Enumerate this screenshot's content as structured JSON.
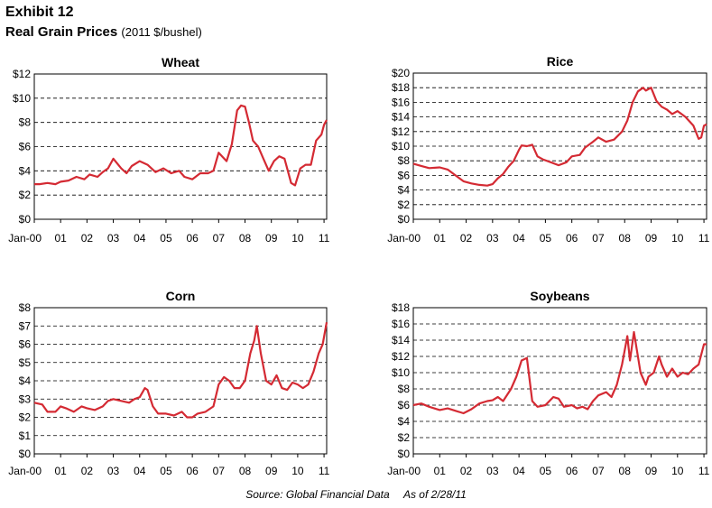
{
  "header": {
    "exhibit": "Exhibit 12",
    "title": "Real Grain Prices",
    "units": "(2011 $/bushel)"
  },
  "footer": {
    "source": "Source:  Global Financial Data",
    "asof": "As of 2/28/11"
  },
  "colors": {
    "line": "#d42a33",
    "grid": "#000000",
    "axis": "#000000"
  },
  "chart_data": [
    {
      "type": "line",
      "title": "Wheat",
      "first_category_label": "Jan-00",
      "categories": [
        "00",
        "01",
        "02",
        "03",
        "04",
        "05",
        "06",
        "07",
        "08",
        "09",
        "10",
        "11"
      ],
      "ylim": [
        0,
        12
      ],
      "yticks": [
        "$0",
        "$2",
        "$4",
        "$6",
        "$8",
        "$10",
        "$12"
      ],
      "grid": "horizontal dashed",
      "series": [
        {
          "x": [
            0,
            0.2,
            0.5,
            0.8,
            1.0,
            1.3,
            1.6,
            1.9,
            2.1,
            2.4,
            2.6,
            2.8,
            3.0,
            3.3,
            3.5,
            3.7,
            4.0,
            4.3,
            4.6,
            4.9,
            5.2,
            5.5,
            5.7,
            6.0,
            6.3,
            6.6,
            6.8,
            7.0,
            7.3,
            7.5,
            7.7,
            7.85,
            8.0,
            8.15,
            8.3,
            8.5,
            8.7,
            8.9,
            9.1,
            9.3,
            9.5,
            9.6,
            9.75,
            9.9,
            10.1,
            10.3,
            10.5,
            10.7,
            10.9,
            11.0,
            11.1
          ],
          "values": [
            2.9,
            2.9,
            3.0,
            2.9,
            3.1,
            3.2,
            3.5,
            3.3,
            3.7,
            3.5,
            3.9,
            4.2,
            5.0,
            4.2,
            3.8,
            4.4,
            4.8,
            4.5,
            3.9,
            4.2,
            3.8,
            4.0,
            3.5,
            3.3,
            3.8,
            3.8,
            4.0,
            5.5,
            4.8,
            6.2,
            9.0,
            9.4,
            9.3,
            8.0,
            6.5,
            6.0,
            5.0,
            4.0,
            4.8,
            5.2,
            5.0,
            4.2,
            3.0,
            2.8,
            4.2,
            4.5,
            4.5,
            6.5,
            7.0,
            7.8,
            8.2
          ]
        }
      ]
    },
    {
      "type": "line",
      "title": "Rice",
      "first_category_label": "Jan-00",
      "categories": [
        "00",
        "01",
        "02",
        "03",
        "04",
        "05",
        "06",
        "07",
        "08",
        "09",
        "10",
        "11"
      ],
      "ylim": [
        0,
        20
      ],
      "yticks": [
        "$0",
        "$2",
        "$4",
        "$6",
        "$8",
        "$10",
        "$12",
        "$14",
        "$16",
        "$18",
        "$20"
      ],
      "grid": "horizontal dashed",
      "series": [
        {
          "x": [
            0,
            0.3,
            0.6,
            1.0,
            1.3,
            1.6,
            1.9,
            2.2,
            2.5,
            2.8,
            3.0,
            3.2,
            3.4,
            3.6,
            3.8,
            4.0,
            4.1,
            4.3,
            4.5,
            4.7,
            4.9,
            5.2,
            5.5,
            5.8,
            6.0,
            6.3,
            6.5,
            6.8,
            7.0,
            7.3,
            7.6,
            7.9,
            8.1,
            8.3,
            8.5,
            8.7,
            8.8,
            9.0,
            9.2,
            9.4,
            9.6,
            9.8,
            10.0,
            10.3,
            10.6,
            10.8,
            10.9,
            11.0,
            11.1
          ],
          "values": [
            7.6,
            7.3,
            7.0,
            7.1,
            6.8,
            6.0,
            5.2,
            4.9,
            4.7,
            4.6,
            4.8,
            5.6,
            6.2,
            7.2,
            8.0,
            9.5,
            10.1,
            10.0,
            10.2,
            8.6,
            8.2,
            7.8,
            7.4,
            7.8,
            8.6,
            8.8,
            9.8,
            10.6,
            11.2,
            10.6,
            10.9,
            12.0,
            13.5,
            16.0,
            17.5,
            18.0,
            17.6,
            18.0,
            16.2,
            15.4,
            15.0,
            14.4,
            14.8,
            14.0,
            12.8,
            11.0,
            11.2,
            12.8,
            13.0
          ]
        }
      ]
    },
    {
      "type": "line",
      "title": "Corn",
      "first_category_label": "Jan-00",
      "categories": [
        "00",
        "01",
        "02",
        "03",
        "04",
        "05",
        "06",
        "07",
        "08",
        "09",
        "10",
        "11"
      ],
      "ylim": [
        0,
        8
      ],
      "yticks": [
        "$0",
        "$1",
        "$2",
        "$3",
        "$4",
        "$5",
        "$6",
        "$7",
        "$8"
      ],
      "grid": "horizontal dashed",
      "series": [
        {
          "x": [
            0,
            0.3,
            0.5,
            0.8,
            1.0,
            1.2,
            1.5,
            1.8,
            2.0,
            2.3,
            2.6,
            2.8,
            3.0,
            3.3,
            3.6,
            3.8,
            4.0,
            4.2,
            4.3,
            4.5,
            4.7,
            5.0,
            5.3,
            5.6,
            5.8,
            6.0,
            6.2,
            6.5,
            6.8,
            7.0,
            7.2,
            7.4,
            7.6,
            7.8,
            8.0,
            8.2,
            8.35,
            8.45,
            8.6,
            8.8,
            9.0,
            9.2,
            9.4,
            9.6,
            9.8,
            10.0,
            10.2,
            10.4,
            10.6,
            10.8,
            10.95,
            11.1
          ],
          "values": [
            2.8,
            2.7,
            2.3,
            2.3,
            2.6,
            2.5,
            2.3,
            2.6,
            2.5,
            2.4,
            2.6,
            2.9,
            3.0,
            2.9,
            2.8,
            3.0,
            3.1,
            3.6,
            3.5,
            2.6,
            2.2,
            2.2,
            2.1,
            2.3,
            2.0,
            2.0,
            2.2,
            2.3,
            2.6,
            3.8,
            4.2,
            4.0,
            3.6,
            3.6,
            4.0,
            5.5,
            6.2,
            7.0,
            5.5,
            4.0,
            3.8,
            4.3,
            3.6,
            3.5,
            3.9,
            3.8,
            3.6,
            3.8,
            4.5,
            5.5,
            6.0,
            7.2
          ]
        }
      ]
    },
    {
      "type": "line",
      "title": "Soybeans",
      "first_category_label": "Jan-00",
      "categories": [
        "00",
        "01",
        "02",
        "03",
        "04",
        "05",
        "06",
        "07",
        "08",
        "09",
        "10",
        "11"
      ],
      "ylim": [
        0,
        18
      ],
      "yticks": [
        "$0",
        "$2",
        "$4",
        "$6",
        "$8",
        "$10",
        "$12",
        "$14",
        "$16",
        "$18"
      ],
      "grid": "horizontal dashed",
      "series": [
        {
          "x": [
            0,
            0.3,
            0.6,
            1.0,
            1.3,
            1.6,
            1.9,
            2.2,
            2.5,
            2.8,
            3.0,
            3.2,
            3.4,
            3.7,
            3.9,
            4.1,
            4.3,
            4.5,
            4.7,
            5.0,
            5.3,
            5.5,
            5.7,
            6.0,
            6.2,
            6.4,
            6.6,
            6.8,
            7.0,
            7.3,
            7.5,
            7.7,
            7.9,
            8.1,
            8.2,
            8.35,
            8.5,
            8.6,
            8.8,
            8.9,
            9.1,
            9.3,
            9.4,
            9.6,
            9.8,
            10.0,
            10.2,
            10.4,
            10.6,
            10.8,
            11.0,
            11.1
          ],
          "values": [
            6.0,
            6.2,
            5.8,
            5.4,
            5.6,
            5.3,
            5.0,
            5.5,
            6.2,
            6.5,
            6.6,
            7.0,
            6.5,
            8.0,
            9.5,
            11.5,
            11.8,
            6.5,
            5.8,
            6.0,
            7.0,
            6.8,
            5.8,
            6.0,
            5.6,
            5.8,
            5.5,
            6.5,
            7.2,
            7.6,
            7.0,
            8.5,
            11.0,
            14.5,
            11.5,
            15.0,
            12.0,
            10.0,
            8.5,
            9.5,
            10.0,
            12.0,
            11.0,
            9.5,
            10.5,
            9.5,
            10.0,
            9.8,
            10.5,
            11.0,
            13.5,
            13.5
          ]
        }
      ]
    }
  ]
}
